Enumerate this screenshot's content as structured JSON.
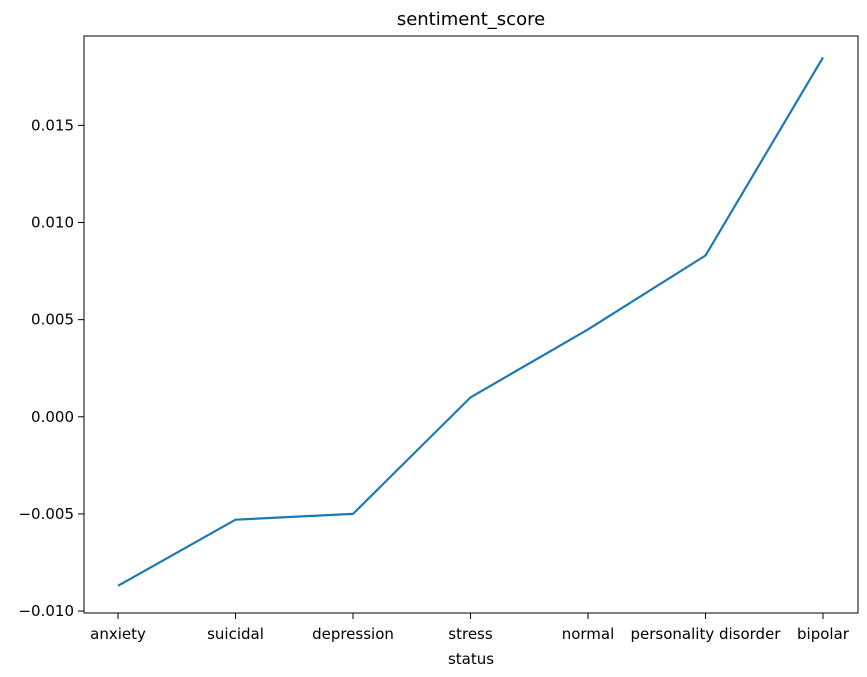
{
  "chart_data": {
    "type": "line",
    "title": "sentiment_score",
    "xlabel": "status",
    "ylabel": "",
    "categories": [
      "anxiety",
      "suicidal",
      "depression",
      "stress",
      "normal",
      "personality disorder",
      "bipolar"
    ],
    "series": [
      {
        "values": [
          -0.0087,
          -0.0053,
          -0.005,
          0.001,
          0.0045,
          0.0083,
          0.0185
        ]
      }
    ],
    "ylim": [
      -0.0101,
      0.0196
    ],
    "yticks": [
      -0.01,
      -0.005,
      0.0,
      0.005,
      0.01,
      0.015
    ],
    "ytick_labels": [
      "−0.010",
      "−0.005",
      "0.000",
      "0.005",
      "0.010",
      "0.015"
    ],
    "grid": false,
    "colors": {
      "line": "#1f77b4",
      "axis": "#000000",
      "background": "#ffffff"
    }
  }
}
